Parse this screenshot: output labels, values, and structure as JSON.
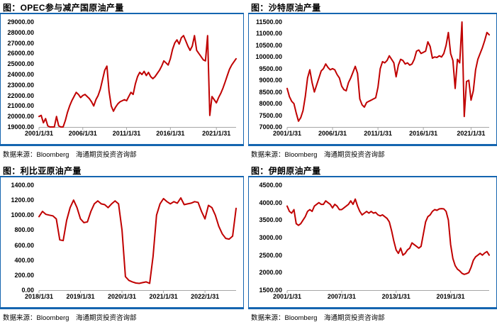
{
  "colors": {
    "rule_blue": "#1565B0",
    "line_red": "#C00000",
    "axis_gray": "#A6A6A6",
    "text_black": "#000000",
    "background": "#FFFFFF"
  },
  "charts": [
    {
      "title": "图：OPEC参与减产国原油产量",
      "source": "数据来源：Bloomberg　海通期货投资咨询部",
      "chart_data": {
        "type": "line",
        "series_label": "OPEC参与减产国原油产量",
        "xlabel": "",
        "ylabel": "",
        "grid": false,
        "legend": false,
        "ylim": [
          19000,
          29000
        ],
        "y_tick_labels": [
          "29000.00",
          "28000.00",
          "27000.00",
          "26000.00",
          "25000.00",
          "24000.00",
          "23000.00",
          "22000.00",
          "21000.00",
          "20000.00",
          "19000.00"
        ],
        "x_ticks": [
          "2001/1/31",
          "2006/1/31",
          "2011/1/31",
          "2016/1/31",
          "2021/1/31"
        ],
        "x_tick_indices": [
          0,
          20,
          40,
          60,
          81
        ],
        "values": [
          20000,
          20100,
          19400,
          19800,
          19100,
          18950,
          19000,
          19000,
          20000,
          19100,
          18950,
          19000,
          19600,
          20400,
          21000,
          21500,
          21900,
          22300,
          22100,
          21800,
          22000,
          22100,
          21900,
          21700,
          21400,
          21000,
          21600,
          22000,
          22600,
          23500,
          24400,
          24800,
          22400,
          21000,
          20500,
          20900,
          21200,
          21400,
          21500,
          21600,
          21500,
          21900,
          22300,
          22100,
          23100,
          23800,
          24200,
          24000,
          24300,
          23900,
          24200,
          23800,
          23600,
          23800,
          24100,
          24400,
          24800,
          25300,
          25100,
          24900,
          25500,
          26400,
          27000,
          27300,
          26900,
          27500,
          27700,
          27200,
          26700,
          26300,
          26700,
          27700,
          26300,
          26000,
          25700,
          25400,
          25300,
          27700,
          20100,
          21900,
          21600,
          21300,
          21800,
          22200,
          22700,
          23300,
          23900,
          24500,
          24900,
          25200,
          25500
        ]
      }
    },
    {
      "title": "图：沙特原油产量",
      "source": "数据来源：Bloomberg　海通期货投资咨询部",
      "chart_data": {
        "type": "line",
        "series_label": "沙特原油产量",
        "xlabel": "",
        "ylabel": "",
        "grid": false,
        "legend": false,
        "ylim": [
          7000,
          11500
        ],
        "y_tick_labels": [
          "11500.00",
          "11000.00",
          "10500.00",
          "10000.00",
          "9500.00",
          "9000.00",
          "8500.00",
          "8000.00",
          "7500.00",
          "7000.00"
        ],
        "x_ticks": [
          "2001/1/31",
          "2006/1/31",
          "2011/1/31",
          "2016/1/31",
          "2021/1/31"
        ],
        "x_tick_indices": [
          0,
          20,
          40,
          60,
          81
        ],
        "values": [
          8650,
          8300,
          8100,
          8000,
          7600,
          7250,
          7400,
          7700,
          8300,
          9100,
          9450,
          8900,
          8500,
          8800,
          9100,
          9400,
          9500,
          9700,
          9550,
          9450,
          9500,
          9450,
          9250,
          9100,
          8750,
          8600,
          8550,
          8900,
          9100,
          9350,
          9600,
          9300,
          8200,
          7950,
          7850,
          8050,
          8100,
          8150,
          8200,
          8250,
          8700,
          9500,
          9800,
          9750,
          9850,
          10050,
          9900,
          9750,
          9150,
          9650,
          9900,
          9850,
          9700,
          9750,
          9650,
          9700,
          9900,
          10250,
          10300,
          10150,
          10200,
          10250,
          10650,
          10450,
          9950,
          10000,
          9980,
          10050,
          10000,
          10150,
          10500,
          11050,
          10150,
          9850,
          8650,
          9900,
          9750,
          11500,
          7450,
          8950,
          9000,
          8150,
          8550,
          9450,
          9900,
          10150,
          10400,
          10700,
          11050,
          10950
        ]
      }
    },
    {
      "title": "图：利比亚原油产量",
      "source": "数据来源：Bloomberg　海通期货投资咨询部",
      "chart_data": {
        "type": "line",
        "series_label": "利比亚原油产量",
        "xlabel": "",
        "ylabel": "",
        "grid": false,
        "legend": false,
        "ylim": [
          0,
          1400
        ],
        "y_tick_labels": [
          "1400.00",
          "1200.00",
          "1000.00",
          "800.00",
          "600.00",
          "400.00",
          "200.00",
          "0.00"
        ],
        "x_ticks": [
          "2018/1/31",
          "2019/1/31",
          "2020/1/31",
          "2021/1/31",
          "2022/1/31"
        ],
        "x_tick_indices": [
          0,
          12,
          24,
          36,
          48
        ],
        "values": [
          980,
          1050,
          1010,
          1000,
          990,
          950,
          670,
          660,
          930,
          1100,
          1200,
          1100,
          950,
          900,
          910,
          1050,
          1150,
          1190,
          1150,
          1140,
          1100,
          1150,
          1190,
          1150,
          800,
          180,
          130,
          110,
          95,
          90,
          100,
          110,
          90,
          450,
          1000,
          1150,
          1220,
          1180,
          1150,
          1180,
          1160,
          1230,
          1140,
          1150,
          1160,
          1180,
          1170,
          1050,
          950,
          1130,
          1100,
          1000,
          850,
          750,
          690,
          680,
          720,
          1090
        ]
      }
    },
    {
      "title": "图：伊朗原油产量",
      "source": "数据来源：Bloomberg　海通期货投资咨询部",
      "chart_data": {
        "type": "line",
        "series_label": "伊朗原油产量",
        "xlabel": "",
        "ylabel": "",
        "grid": false,
        "legend": false,
        "ylim": [
          1500,
          4500
        ],
        "y_tick_labels": [
          "4500.00",
          "4000.00",
          "3500.00",
          "3000.00",
          "2500.00",
          "2000.00",
          "1500.00"
        ],
        "x_ticks": [
          "2001/1/31",
          "2007/1/31",
          "2013/1/31",
          "2019/1/31"
        ],
        "x_tick_indices": [
          0,
          24,
          48,
          72
        ],
        "values": [
          3900,
          3750,
          3700,
          3800,
          3400,
          3350,
          3400,
          3500,
          3600,
          3750,
          3800,
          3750,
          3900,
          3950,
          4000,
          3950,
          3950,
          4050,
          4000,
          3950,
          3850,
          3950,
          3900,
          3800,
          3800,
          3850,
          3900,
          3950,
          4050,
          3950,
          4100,
          3900,
          3750,
          3650,
          3700,
          3750,
          3700,
          3750,
          3700,
          3720,
          3650,
          3620,
          3650,
          3600,
          3550,
          3450,
          3200,
          2900,
          2650,
          2550,
          2700,
          2500,
          2550,
          2650,
          2700,
          2850,
          2800,
          2750,
          2700,
          2750,
          3100,
          3450,
          3600,
          3650,
          3750,
          3800,
          3780,
          3820,
          3830,
          3820,
          3750,
          3500,
          2800,
          2400,
          2200,
          2100,
          2050,
          1980,
          1950,
          1970,
          2000,
          2150,
          2350,
          2450,
          2500,
          2550,
          2500,
          2560,
          2600,
          2500
        ]
      }
    }
  ]
}
